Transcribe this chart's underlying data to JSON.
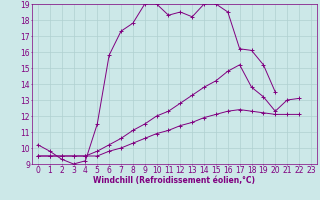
{
  "background_color": "#cce8e8",
  "line_color": "#800080",
  "grid_color": "#b0d0d0",
  "xlabel": "Windchill (Refroidissement éolien,°C)",
  "xlabel_fontsize": 5.5,
  "tick_fontsize": 5.5,
  "xlim": [
    -0.5,
    23.5
  ],
  "ylim": [
    9,
    19
  ],
  "yticks": [
    9,
    10,
    11,
    12,
    13,
    14,
    15,
    16,
    17,
    18,
    19
  ],
  "xticks": [
    0,
    1,
    2,
    3,
    4,
    5,
    6,
    7,
    8,
    9,
    10,
    11,
    12,
    13,
    14,
    15,
    16,
    17,
    18,
    19,
    20,
    21,
    22,
    23
  ],
  "line1_x": [
    0,
    1,
    2,
    3,
    4,
    5,
    6,
    7,
    8,
    9,
    10,
    11,
    12,
    13,
    14,
    15,
    16,
    17,
    18,
    19,
    20
  ],
  "line1_y": [
    10.2,
    9.8,
    9.3,
    9.0,
    9.2,
    11.5,
    15.8,
    17.3,
    17.8,
    19.0,
    19.0,
    18.3,
    18.5,
    18.2,
    19.0,
    19.0,
    18.5,
    16.2,
    16.1,
    15.2,
    13.5
  ],
  "line2_x": [
    0,
    1,
    2,
    3,
    4,
    5,
    6,
    7,
    8,
    9,
    10,
    11,
    12,
    13,
    14,
    15,
    16,
    17,
    18,
    19,
    20,
    21,
    22
  ],
  "line2_y": [
    9.5,
    9.5,
    9.5,
    9.5,
    9.5,
    9.8,
    10.2,
    10.6,
    11.1,
    11.5,
    12.0,
    12.3,
    12.8,
    13.3,
    13.8,
    14.2,
    14.8,
    15.2,
    13.8,
    13.2,
    12.3,
    13.0,
    13.1
  ],
  "line3_x": [
    0,
    1,
    2,
    3,
    4,
    5,
    6,
    7,
    8,
    9,
    10,
    11,
    12,
    13,
    14,
    15,
    16,
    17,
    18,
    19,
    20,
    21,
    22
  ],
  "line3_y": [
    9.5,
    9.5,
    9.5,
    9.5,
    9.5,
    9.5,
    9.8,
    10.0,
    10.3,
    10.6,
    10.9,
    11.1,
    11.4,
    11.6,
    11.9,
    12.1,
    12.3,
    12.4,
    12.3,
    12.2,
    12.1,
    12.1,
    12.1
  ]
}
